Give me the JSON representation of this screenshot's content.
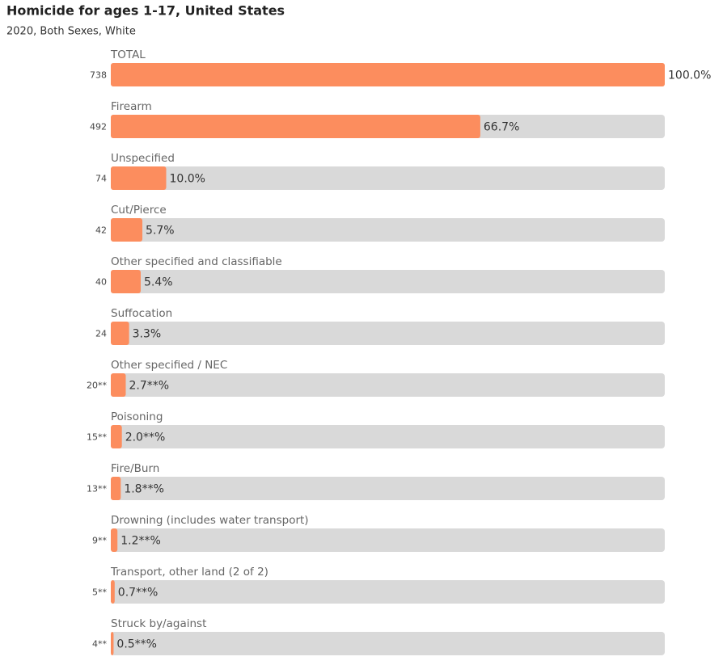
{
  "chart_data": {
    "type": "bar",
    "orientation": "horizontal",
    "title": "Homicide for ages 1-17, United States",
    "subtitle": "2020, Both Sexes, White",
    "categories": [
      "TOTAL",
      "Firearm",
      "Unspecified",
      "Cut/Pierce",
      "Other specified and classifiable",
      "Suffocation",
      "Other specified / NEC",
      "Poisoning",
      "Fire/Burn",
      "Drowning (includes water transport)",
      "Transport, other land (2 of 2)",
      "Struck by/against"
    ],
    "values": [
      100.0,
      66.7,
      10.0,
      5.7,
      5.4,
      3.3,
      2.7,
      2.0,
      1.8,
      1.2,
      0.7,
      0.5
    ],
    "value_labels": [
      "100.0%",
      "66.7%",
      "10.0%",
      "5.7%",
      "5.4%",
      "3.3%",
      "2.7**%",
      "2.0**%",
      "1.8**%",
      "1.2**%",
      "0.7**%",
      "0.5**%"
    ],
    "counts": [
      738,
      492,
      74,
      42,
      40,
      24,
      {
        "value": 20,
        "label": "20**"
      },
      {
        "value": 15,
        "label": "15**"
      },
      {
        "value": 13,
        "label": "13**"
      },
      {
        "value": 9,
        "label": "9**"
      },
      {
        "value": 5,
        "label": "5**"
      },
      {
        "value": 4,
        "label": "4**"
      }
    ],
    "xlim": [
      0,
      100
    ],
    "color": "#fc8d5e",
    "track_color": "#d9d9d9"
  }
}
